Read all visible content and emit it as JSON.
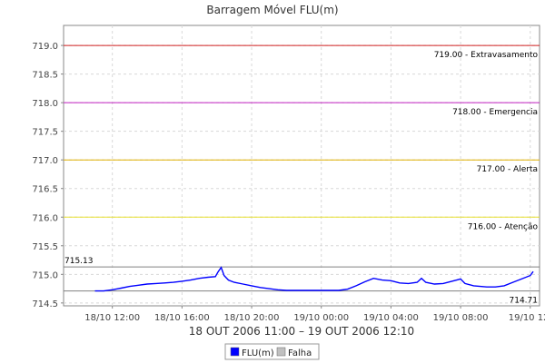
{
  "chart_data": {
    "type": "line",
    "title": "Barragem Móvel FLU(m)",
    "xlabel": "18 OUT 2006 11:00 – 19 OUT 2006 12:10",
    "ylabel": "",
    "x_range": [
      "2006-10-18 09:12",
      "2006-10-19 12:32"
    ],
    "ylim": [
      714.45,
      719.35
    ],
    "y_ticks": [
      "714.5",
      "715.0",
      "715.5",
      "716.0",
      "716.5",
      "717.0",
      "717.5",
      "718.0",
      "718.5",
      "719.0"
    ],
    "x_ticks": [
      {
        "x": "2006-10-18 12:00",
        "label": "18/10 12:00"
      },
      {
        "x": "2006-10-18 16:00",
        "label": "18/10 16:00"
      },
      {
        "x": "2006-10-18 20:00",
        "label": "18/10 20:00"
      },
      {
        "x": "2006-10-19 00:00",
        "label": "19/10 00:00"
      },
      {
        "x": "2006-10-19 04:00",
        "label": "19/10 04:00"
      },
      {
        "x": "2006-10-19 08:00",
        "label": "19/10 08:00"
      },
      {
        "x": "2006-10-19 12:00",
        "label": "19/10 12:"
      }
    ],
    "grid": true,
    "legend_placement": "bottom-center",
    "thresholds": [
      {
        "value": 719.0,
        "label": "719.00 - Extravasamento",
        "color": "#d02020"
      },
      {
        "value": 718.0,
        "label": "718.00 - Emergencia",
        "color": "#c020c0"
      },
      {
        "value": 717.0,
        "label": "717.00 - Alerta",
        "color": "#e0b000"
      },
      {
        "value": 716.0,
        "label": "716.00 - Atenção",
        "color": "#e8e030"
      }
    ],
    "markers": [
      {
        "value": 715.13,
        "label": "715.13",
        "color": "#808080"
      },
      {
        "value": 714.71,
        "label": "714.71",
        "color": "#808080"
      }
    ],
    "series": [
      {
        "name": "FLU(m)",
        "color": "#0000ff",
        "points": [
          [
            "2006-10-18 11:00",
            714.71
          ],
          [
            "2006-10-18 11:30",
            714.71
          ],
          [
            "2006-10-18 12:00",
            714.73
          ],
          [
            "2006-10-18 12:30",
            714.76
          ],
          [
            "2006-10-18 13:00",
            714.79
          ],
          [
            "2006-10-18 13:30",
            714.81
          ],
          [
            "2006-10-18 14:00",
            714.83
          ],
          [
            "2006-10-18 14:30",
            714.84
          ],
          [
            "2006-10-18 15:00",
            714.85
          ],
          [
            "2006-10-18 15:30",
            714.86
          ],
          [
            "2006-10-18 16:00",
            714.88
          ],
          [
            "2006-10-18 16:30",
            714.9
          ],
          [
            "2006-10-18 17:00",
            714.93
          ],
          [
            "2006-10-18 17:30",
            714.95
          ],
          [
            "2006-10-18 17:55",
            714.96
          ],
          [
            "2006-10-18 18:05",
            715.05
          ],
          [
            "2006-10-18 18:15",
            715.12
          ],
          [
            "2006-10-18 18:25",
            714.98
          ],
          [
            "2006-10-18 18:40",
            714.9
          ],
          [
            "2006-10-18 19:00",
            714.86
          ],
          [
            "2006-10-18 19:30",
            714.83
          ],
          [
            "2006-10-18 20:00",
            714.8
          ],
          [
            "2006-10-18 20:30",
            714.77
          ],
          [
            "2006-10-18 21:00",
            714.75
          ],
          [
            "2006-10-18 21:30",
            714.73
          ],
          [
            "2006-10-18 22:00",
            714.72
          ],
          [
            "2006-10-18 23:00",
            714.72
          ],
          [
            "2006-10-19 00:00",
            714.72
          ],
          [
            "2006-10-19 01:00",
            714.72
          ],
          [
            "2006-10-19 01:30",
            714.74
          ],
          [
            "2006-10-19 02:00",
            714.8
          ],
          [
            "2006-10-19 02:30",
            714.87
          ],
          [
            "2006-10-19 03:00",
            714.93
          ],
          [
            "2006-10-19 03:30",
            714.9
          ],
          [
            "2006-10-19 04:00",
            714.89
          ],
          [
            "2006-10-19 04:30",
            714.85
          ],
          [
            "2006-10-19 05:00",
            714.84
          ],
          [
            "2006-10-19 05:30",
            714.86
          ],
          [
            "2006-10-19 05:45",
            714.93
          ],
          [
            "2006-10-19 06:00",
            714.86
          ],
          [
            "2006-10-19 06:30",
            714.83
          ],
          [
            "2006-10-19 07:00",
            714.84
          ],
          [
            "2006-10-19 07:30",
            714.88
          ],
          [
            "2006-10-19 08:00",
            714.92
          ],
          [
            "2006-10-19 08:15",
            714.84
          ],
          [
            "2006-10-19 08:45",
            714.8
          ],
          [
            "2006-10-19 09:30",
            714.78
          ],
          [
            "2006-10-19 10:00",
            714.78
          ],
          [
            "2006-10-19 10:30",
            714.8
          ],
          [
            "2006-10-19 11:00",
            714.86
          ],
          [
            "2006-10-19 11:30",
            714.92
          ],
          [
            "2006-10-19 12:00",
            714.98
          ],
          [
            "2006-10-19 12:10",
            715.05
          ]
        ]
      }
    ],
    "legend": [
      {
        "label": "FLU(m)",
        "color": "#0000ff"
      },
      {
        "label": "Falha",
        "color": "#c0c0c0"
      }
    ]
  }
}
